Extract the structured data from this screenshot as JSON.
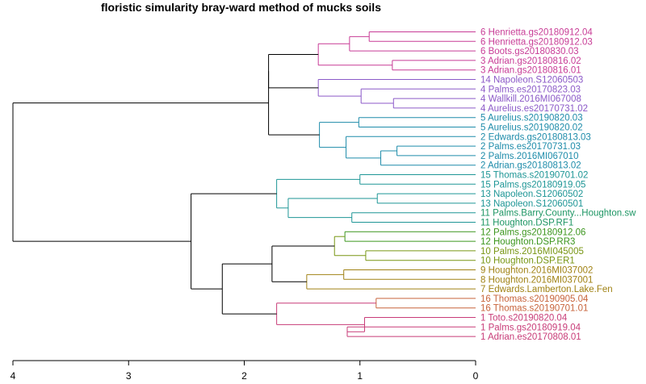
{
  "chart_data": {
    "type": "dendrogram",
    "title": "floristic simularity bray-ward  method of mucks soils",
    "xlabel": "",
    "ylabel": "",
    "x_axis": {
      "ticks": [
        4,
        3,
        2,
        1,
        0
      ],
      "range": [
        4,
        0
      ]
    },
    "leaves": [
      {
        "label": "6 Henrietta.gs20180912.04",
        "color": "#C83C96"
      },
      {
        "label": "6 Henrietta.gs20180912.03",
        "color": "#C83C96"
      },
      {
        "label": "6 Boots.gs20180830.03",
        "color": "#C83C96"
      },
      {
        "label": "3 Adrian.gs20180816.02",
        "color": "#C83C96"
      },
      {
        "label": "3 Adrian.gs20180816.01",
        "color": "#C83C96"
      },
      {
        "label": "14 Napoleon.S12060503",
        "color": "#8C5AC8"
      },
      {
        "label": "4 Palms.es20170823.03",
        "color": "#8C5AC8"
      },
      {
        "label": "4 Wallkill.2016MI067008",
        "color": "#8C5AC8"
      },
      {
        "label": "4 Aurelius.es20170731.02",
        "color": "#8C5AC8"
      },
      {
        "label": "5 Aurelius.s20190820.03",
        "color": "#1E8CAA"
      },
      {
        "label": "5 Aurelius.s20190820.02",
        "color": "#1E8CAA"
      },
      {
        "label": "2 Edwards.gs20180813.03",
        "color": "#1E8CAA"
      },
      {
        "label": "2 Palms.es20170731.03",
        "color": "#1E8CAA"
      },
      {
        "label": "2 Palms.2016MI067010",
        "color": "#1E8CAA"
      },
      {
        "label": "2 Adrian.gs20180813.02",
        "color": "#1E8CAA"
      },
      {
        "label": "15 Thomas.s20190701.02",
        "color": "#1E9696"
      },
      {
        "label": "15 Palms.gs20180919.05",
        "color": "#1E9696"
      },
      {
        "label": "13 Napoleon.S12060502",
        "color": "#1E9696"
      },
      {
        "label": "13 Napoleon.S12060501",
        "color": "#1E9696"
      },
      {
        "label": "11 Palms.Barry.County...Houghton.sw",
        "color": "#1E9664"
      },
      {
        "label": "11 Houghton.DSP.RF1",
        "color": "#1E9664"
      },
      {
        "label": "12 Palms.gs20180912.06",
        "color": "#3C961E"
      },
      {
        "label": "12 Houghton.DSP.RR3",
        "color": "#3C961E"
      },
      {
        "label": "10 Palms.2016MI045005",
        "color": "#789614"
      },
      {
        "label": "10 Houghton.DSP.ER1",
        "color": "#789614"
      },
      {
        "label": "9 Houghton.2016MI037002",
        "color": "#A08214"
      },
      {
        "label": "8 Houghton.2016MI037001",
        "color": "#A08214"
      },
      {
        "label": "7 Edwards.Lamberton.Lake.Fen",
        "color": "#A08214"
      },
      {
        "label": "16 Thomas.s20190905.04",
        "color": "#C8643C"
      },
      {
        "label": "16 Thomas.s20190701.01",
        "color": "#C8643C"
      },
      {
        "label": "1 Toto.s20190820.04",
        "color": "#C83C78"
      },
      {
        "label": "1 Palms.gs20180919.04",
        "color": "#C83C78"
      },
      {
        "label": "1 Adrian.es20170808.01",
        "color": "#C83C78"
      }
    ],
    "merges": [
      {
        "id": "n1",
        "a": 0,
        "b": 1,
        "height": 0.92,
        "color": "#C83C96"
      },
      {
        "id": "n2",
        "a": "n1",
        "b": 2,
        "height": 1.09,
        "color": "#C83C96"
      },
      {
        "id": "n3",
        "a": 3,
        "b": 4,
        "height": 0.72,
        "color": "#C83C96"
      },
      {
        "id": "n4",
        "a": "n2",
        "b": "n3",
        "height": 1.36,
        "color": "#C83C96"
      },
      {
        "id": "n5",
        "a": 7,
        "b": 8,
        "height": 0.71,
        "color": "#8C5AC8"
      },
      {
        "id": "n6",
        "a": 6,
        "b": "n5",
        "height": 0.99,
        "color": "#8C5AC8"
      },
      {
        "id": "n7",
        "a": 5,
        "b": "n6",
        "height": 1.36,
        "color": "#8C5AC8"
      },
      {
        "id": "n8",
        "a": 9,
        "b": 10,
        "height": 1.01,
        "color": "#1E8CAA"
      },
      {
        "id": "n9",
        "a": 12,
        "b": 13,
        "height": 0.68,
        "color": "#1E8CAA"
      },
      {
        "id": "n10",
        "a": "n9",
        "b": 14,
        "height": 0.82,
        "color": "#1E8CAA"
      },
      {
        "id": "n11",
        "a": 11,
        "b": "n10",
        "height": 1.12,
        "color": "#1E8CAA"
      },
      {
        "id": "n12",
        "a": "n8",
        "b": "n11",
        "height": 1.35,
        "color": "#1E8CAA"
      },
      {
        "id": "n13",
        "a": "n4",
        "b": "n7",
        "height": 1.79,
        "color": "#000000"
      },
      {
        "id": "n14",
        "a": "n13",
        "b": "n12",
        "height": 1.79,
        "color": "#000000"
      },
      {
        "id": "n15",
        "a": 15,
        "b": 16,
        "height": 1.0,
        "color": "#1E9696"
      },
      {
        "id": "n16",
        "a": 17,
        "b": 18,
        "height": 0.85,
        "color": "#1E9696"
      },
      {
        "id": "n17",
        "a": 19,
        "b": 20,
        "height": 1.07,
        "color": "#1E9696"
      },
      {
        "id": "n18",
        "a": "n16",
        "b": "n17",
        "height": 1.62,
        "color": "#1E9696"
      },
      {
        "id": "n19",
        "a": "n15",
        "b": "n18",
        "height": 1.72,
        "color": "#1E9696"
      },
      {
        "id": "n20",
        "a": 21,
        "b": 22,
        "height": 1.13,
        "color": "#3C961E"
      },
      {
        "id": "n21",
        "a": 23,
        "b": 24,
        "height": 0.95,
        "color": "#789614"
      },
      {
        "id": "n22",
        "a": "n20",
        "b": "n21",
        "height": 1.22,
        "color": "#789614"
      },
      {
        "id": "n23",
        "a": 25,
        "b": 26,
        "height": 1.14,
        "color": "#A08214"
      },
      {
        "id": "n24",
        "a": "n23",
        "b": 27,
        "height": 1.46,
        "color": "#A08214"
      },
      {
        "id": "n25",
        "a": "n22",
        "b": "n24",
        "height": 1.76,
        "color": "#000000"
      },
      {
        "id": "n26",
        "a": 28,
        "b": 29,
        "height": 0.86,
        "color": "#C8643C"
      },
      {
        "id": "n27",
        "a": 31,
        "b": 32,
        "height": 1.11,
        "color": "#C83C78"
      },
      {
        "id": "n28",
        "a": 30,
        "b": "n27",
        "height": 0.96,
        "color": "#C83C78"
      },
      {
        "id": "n29",
        "a": "n26",
        "b": "n28",
        "height": 1.72,
        "color": "#C83C78"
      },
      {
        "id": "n30",
        "a": "n25",
        "b": "n29",
        "height": 2.19,
        "color": "#000000"
      },
      {
        "id": "n31",
        "a": "n19",
        "b": "n30",
        "height": 2.46,
        "color": "#000000"
      },
      {
        "id": "n32",
        "a": "n14",
        "b": "n31",
        "height": 4.0,
        "color": "#000000"
      }
    ]
  }
}
